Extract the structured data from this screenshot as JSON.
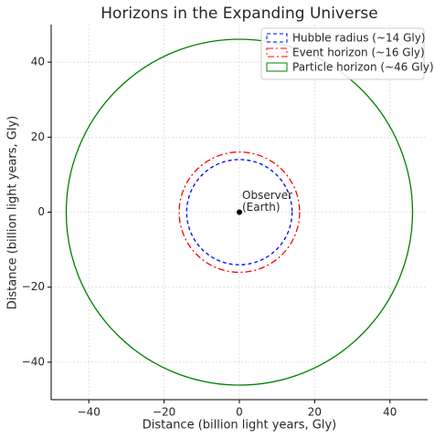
{
  "chart_data": {
    "type": "circles",
    "title": "Horizons in the Expanding Universe",
    "xlabel": "Distance (billion light years, Gly)",
    "ylabel": "Distance (billion light years, Gly)",
    "xlim": [
      -50,
      50
    ],
    "ylim": [
      -50,
      50
    ],
    "xticks": [
      {
        "value": -40,
        "label": "−40"
      },
      {
        "value": -20,
        "label": "−20"
      },
      0,
      20,
      40
    ],
    "yticks": [
      {
        "value": -40,
        "label": "−40"
      },
      {
        "value": -20,
        "label": "−20"
      },
      0,
      20,
      40
    ],
    "grid": true,
    "legend": "upper right",
    "series": [
      {
        "name": "Hubble radius (~14 Gly)",
        "color": "#0000ff",
        "linestyle": "dashed",
        "radius": 14
      },
      {
        "name": "Event horizon (~16 Gly)",
        "color": "#ff0000",
        "linestyle": "dashdot",
        "radius": 16
      },
      {
        "name": "Particle horizon (~46 Gly)",
        "color": "#008000",
        "linestyle": "solid",
        "radius": 46
      }
    ],
    "points": [
      {
        "x": 0,
        "y": 0,
        "color": "#000000",
        "label": [
          "Observer",
          "(Earth)"
        ]
      }
    ]
  }
}
